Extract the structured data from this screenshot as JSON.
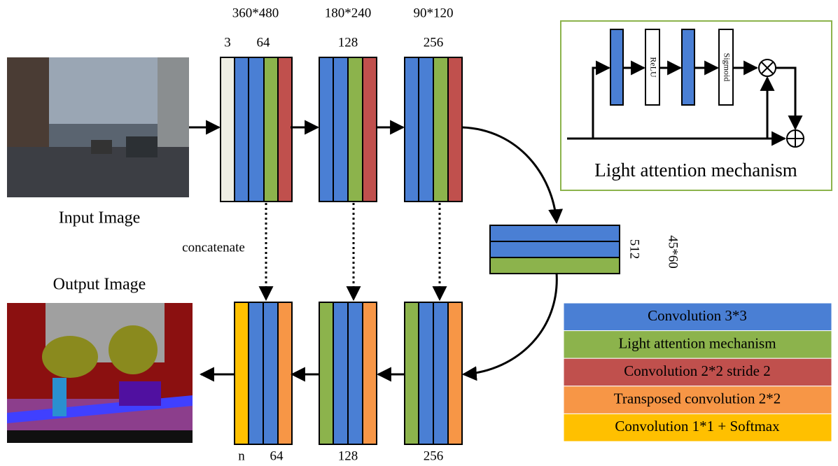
{
  "encoder": {
    "sizes": [
      "360*480",
      "180*240",
      "90*120"
    ],
    "channels": [
      "3",
      "64",
      "128",
      "256"
    ]
  },
  "input_label": "Input Image",
  "output_label": "Output Image",
  "concatenate": "concatenate",
  "bottleneck": {
    "channels": "512",
    "size": "45*60"
  },
  "decoder": {
    "channels": [
      "n",
      "64",
      "128",
      "256"
    ]
  },
  "attention": {
    "nodes": [
      "ReLU",
      "Sigmoid"
    ],
    "title": "Light attention mechanism"
  },
  "legend": [
    "Convolution 3*3",
    "Light attention mechanism",
    "Convolution 2*2 stride 2",
    "Transposed convolution 2*2",
    "Convolution 1*1 + Softmax"
  ]
}
